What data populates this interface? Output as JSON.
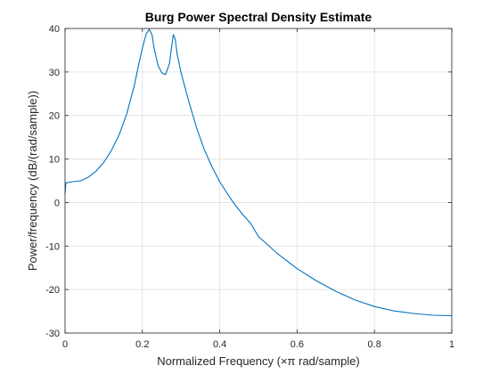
{
  "chart_data": {
    "type": "line",
    "title": "Burg Power Spectral Density Estimate",
    "xlabel": "Normalized  Frequency    (×π  rad/sample)",
    "ylabel": "Power/frequency (dB/(rad/sample))",
    "xlim": [
      0,
      1
    ],
    "ylim": [
      -30,
      40
    ],
    "x_ticks": [
      0,
      0.2,
      0.4,
      0.6,
      0.8,
      1
    ],
    "x_tick_labels": [
      "0",
      "0.2",
      "0.4",
      "0.6",
      "0.8",
      "1"
    ],
    "y_ticks": [
      -30,
      -20,
      -10,
      0,
      10,
      20,
      30,
      40
    ],
    "y_tick_labels": [
      "-30",
      "-20",
      "-10",
      "0",
      "10",
      "20",
      "30",
      "40"
    ],
    "grid": true,
    "series": [
      {
        "color": "#0072BD",
        "points": [
          [
            0,
            2.0
          ],
          [
            0.002,
            4.5
          ],
          [
            0.02,
            4.8
          ],
          [
            0.04,
            5.0
          ],
          [
            0.06,
            5.8
          ],
          [
            0.08,
            7.2
          ],
          [
            0.1,
            9.2
          ],
          [
            0.12,
            12.0
          ],
          [
            0.14,
            15.6
          ],
          [
            0.16,
            20.5
          ],
          [
            0.18,
            27.2
          ],
          [
            0.19,
            31.6
          ],
          [
            0.2,
            35.5
          ],
          [
            0.21,
            38.8
          ],
          [
            0.218,
            39.8
          ],
          [
            0.225,
            38.5
          ],
          [
            0.23,
            35.6
          ],
          [
            0.24,
            31.6
          ],
          [
            0.25,
            29.8
          ],
          [
            0.26,
            29.4
          ],
          [
            0.27,
            32.0
          ],
          [
            0.275,
            35.5
          ],
          [
            0.28,
            38.6
          ],
          [
            0.285,
            37.5
          ],
          [
            0.29,
            34.0
          ],
          [
            0.3,
            29.8
          ],
          [
            0.32,
            23.2
          ],
          [
            0.34,
            17.2
          ],
          [
            0.36,
            12.2
          ],
          [
            0.38,
            8.2
          ],
          [
            0.4,
            4.8
          ],
          [
            0.42,
            2.0
          ],
          [
            0.44,
            -0.6
          ],
          [
            0.46,
            -2.8
          ],
          [
            0.48,
            -4.8
          ],
          [
            0.5,
            -7.8
          ],
          [
            0.55,
            -11.8
          ],
          [
            0.6,
            -15.2
          ],
          [
            0.65,
            -18.0
          ],
          [
            0.7,
            -20.4
          ],
          [
            0.75,
            -22.4
          ],
          [
            0.8,
            -23.9
          ],
          [
            0.85,
            -24.9
          ],
          [
            0.9,
            -25.5
          ],
          [
            0.95,
            -25.9
          ],
          [
            1.0,
            -26.0
          ]
        ]
      }
    ]
  }
}
